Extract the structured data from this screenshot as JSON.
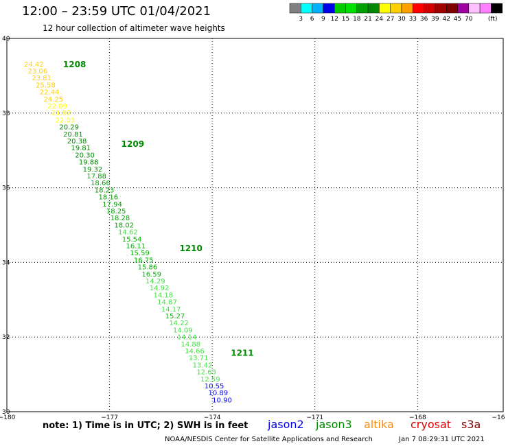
{
  "header": {
    "title": "12:00 – 23:59 UTC 01/04/2021",
    "subtitle": "12 hour collection of altimeter wave heights"
  },
  "color_scale": {
    "colors": [
      "#808080",
      "#00ffff",
      "#00b0ff",
      "#0000e8",
      "#00cc00",
      "#00e000",
      "#00a000",
      "#008800",
      "#ffff00",
      "#ffd000",
      "#ffa000",
      "#ff0000",
      "#d00000",
      "#a00000",
      "#800000",
      "#a000a0",
      "#ffc0ff",
      "#ff80ff",
      "#000000"
    ],
    "labels": [
      "3",
      "6",
      "9",
      "12",
      "15",
      "18",
      "21",
      "24",
      "27",
      "30",
      "33",
      "36",
      "39",
      "42",
      "45",
      "70",
      "(ft)"
    ]
  },
  "axes": {
    "lat_labels": [
      "40",
      "38",
      "36",
      "34",
      "32",
      "30"
    ],
    "lon_labels": [
      "−180",
      "−177",
      "−174",
      "−171",
      "−168",
      "−16"
    ]
  },
  "time_labels": [
    {
      "text": "1208",
      "lon": -179.4,
      "lat": 39.23,
      "color": "#008800"
    },
    {
      "text": "1209",
      "lon": -177.7,
      "lat": 37.1,
      "color": "#008800"
    },
    {
      "text": "1210",
      "lon": -176.0,
      "lat": 34.3,
      "color": "#008800"
    },
    {
      "text": "1211",
      "lon": -174.5,
      "lat": 31.5,
      "color": "#008800"
    }
  ],
  "observations": [
    {
      "t": "24.42",
      "c": "#ffd000"
    },
    {
      "t": "23.06",
      "c": "#ffd000"
    },
    {
      "t": "23.81",
      "c": "#ffd000"
    },
    {
      "t": "25.58",
      "c": "#ffd000"
    },
    {
      "t": "22.44",
      "c": "#ffd000"
    },
    {
      "t": "24.25",
      "c": "#ffd000"
    },
    {
      "t": "22.09",
      "c": "#ffff00"
    },
    {
      "t": "21.92",
      "c": "#ffff00"
    },
    {
      "t": "22.03",
      "c": "#ffff00"
    },
    {
      "t": "20.29",
      "c": "#008800"
    },
    {
      "t": "20.81",
      "c": "#008800"
    },
    {
      "t": "20.38",
      "c": "#008800"
    },
    {
      "t": "19.81",
      "c": "#008800"
    },
    {
      "t": "20.30",
      "c": "#008800"
    },
    {
      "t": "19.88",
      "c": "#008800"
    },
    {
      "t": "19.32",
      "c": "#008800"
    },
    {
      "t": "17.88",
      "c": "#00a000"
    },
    {
      "t": "18.66",
      "c": "#00a000"
    },
    {
      "t": "18.23",
      "c": "#00a000"
    },
    {
      "t": "18.16",
      "c": "#00a000"
    },
    {
      "t": "17.94",
      "c": "#00a000"
    },
    {
      "t": "18.25",
      "c": "#00a000"
    },
    {
      "t": "18.28",
      "c": "#00a000"
    },
    {
      "t": "18.02",
      "c": "#00a000"
    },
    {
      "t": "14.62",
      "c": "#44e044"
    },
    {
      "t": "15.54",
      "c": "#00b000"
    },
    {
      "t": "16.11",
      "c": "#00b000"
    },
    {
      "t": "15.59",
      "c": "#00b000"
    },
    {
      "t": "16.75",
      "c": "#00b000"
    },
    {
      "t": "15.86",
      "c": "#00b000"
    },
    {
      "t": "16.59",
      "c": "#00b000"
    },
    {
      "t": "14.29",
      "c": "#44e044"
    },
    {
      "t": "14.92",
      "c": "#44e044"
    },
    {
      "t": "14.18",
      "c": "#44e044"
    },
    {
      "t": "14.87",
      "c": "#44e044"
    },
    {
      "t": "14.17",
      "c": "#44e044"
    },
    {
      "t": "15.27",
      "c": "#00b000"
    },
    {
      "t": "14.22",
      "c": "#44e044"
    },
    {
      "t": "14.09",
      "c": "#44e044"
    },
    {
      "t": "14.14",
      "c": "#44e044"
    },
    {
      "t": "14.88",
      "c": "#44e044"
    },
    {
      "t": "14.66",
      "c": "#44e044"
    },
    {
      "t": "13.71",
      "c": "#44e044"
    },
    {
      "t": "13.42",
      "c": "#44e044"
    },
    {
      "t": "12.63",
      "c": "#44e044"
    },
    {
      "t": "12.59",
      "c": "#44e044"
    },
    {
      "t": "10.55",
      "c": "#0000e8"
    },
    {
      "t": "10.89",
      "c": "#0000e8"
    },
    {
      "t": "10.90",
      "c": "#0000e8"
    }
  ],
  "track": {
    "start_lon": -179.5,
    "start_lat": 39.25,
    "end_lon": -174.0,
    "end_lat": 30.25
  },
  "note": "note:  1) Time is in UTC;  2) SWH is in feet",
  "satellites": [
    {
      "name": "jason2",
      "color": "#0000e8"
    },
    {
      "name": "jason3",
      "color": "#008800"
    },
    {
      "name": "altika",
      "color": "#ff8c00"
    },
    {
      "name": "cryosat",
      "color": "#e00000"
    },
    {
      "name": "s3a",
      "color": "#800000"
    }
  ],
  "footer": {
    "agency": "NOAA/NESDIS Center for Satellite Applications and Research",
    "timestamp": "Jan  7 08:29:31 UTC 2021"
  }
}
